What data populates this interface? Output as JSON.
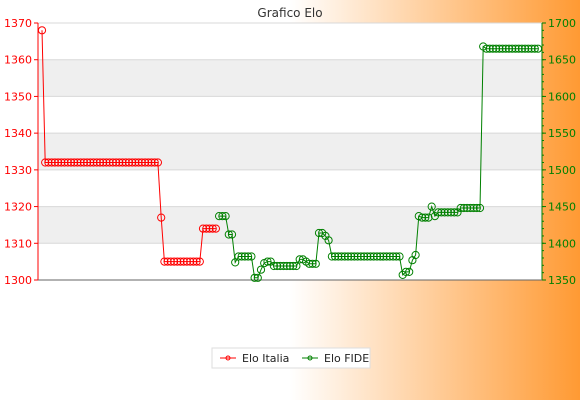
{
  "chart_data": {
    "type": "line",
    "title": "Grafico Elo",
    "y_left": {
      "min": 1300,
      "max": 1370,
      "ticks": [
        1300,
        1310,
        1320,
        1330,
        1340,
        1350,
        1360,
        1370
      ],
      "color": "#ff0000"
    },
    "y_right": {
      "min": 1350,
      "max": 1700,
      "ticks": [
        1350,
        1400,
        1450,
        1500,
        1550,
        1600,
        1650,
        1700
      ],
      "color": "#008000"
    },
    "x": {
      "count": 155
    },
    "grid": true,
    "legend_position": "bottom",
    "colors": {
      "background_start": "#ffffff",
      "background_end": "#ff9a33",
      "band": "#efefef",
      "elo_italia": "#ff0000",
      "elo_fide": "#008000"
    },
    "series": [
      {
        "name": "Elo Italia",
        "axis": "left",
        "segments": [
          {
            "from": 0,
            "to": 1,
            "value": 1368
          },
          {
            "from": 1,
            "to": 37,
            "value": 1332
          },
          {
            "from": 37,
            "to": 38,
            "value": 1317
          },
          {
            "from": 38,
            "to": 50,
            "value": 1305
          },
          {
            "from": 50,
            "to": 55,
            "value": 1314
          }
        ]
      },
      {
        "name": "Elo FIDE",
        "axis": "right",
        "segments": [
          {
            "from": 55,
            "to": 58,
            "value": 1437
          },
          {
            "from": 58,
            "to": 60,
            "value": 1412
          },
          {
            "from": 60,
            "to": 61,
            "value": 1374
          },
          {
            "from": 61,
            "to": 66,
            "value": 1382
          },
          {
            "from": 66,
            "to": 68,
            "value": 1353
          },
          {
            "from": 68,
            "to": 69,
            "value": 1364
          },
          {
            "from": 69,
            "to": 70,
            "value": 1373
          },
          {
            "from": 70,
            "to": 72,
            "value": 1375
          },
          {
            "from": 72,
            "to": 80,
            "value": 1369
          },
          {
            "from": 80,
            "to": 82,
            "value": 1378
          },
          {
            "from": 82,
            "to": 83,
            "value": 1375
          },
          {
            "from": 83,
            "to": 86,
            "value": 1372
          },
          {
            "from": 86,
            "to": 88,
            "value": 1414
          },
          {
            "from": 88,
            "to": 89,
            "value": 1410
          },
          {
            "from": 89,
            "to": 90,
            "value": 1404
          },
          {
            "from": 90,
            "to": 112,
            "value": 1382
          },
          {
            "from": 112,
            "to": 113,
            "value": 1357
          },
          {
            "from": 113,
            "to": 115,
            "value": 1361
          },
          {
            "from": 115,
            "to": 116,
            "value": 1377
          },
          {
            "from": 116,
            "to": 117,
            "value": 1384
          },
          {
            "from": 117,
            "to": 118,
            "value": 1437
          },
          {
            "from": 118,
            "to": 121,
            "value": 1435
          },
          {
            "from": 121,
            "to": 122,
            "value": 1450
          },
          {
            "from": 122,
            "to": 123,
            "value": 1437
          },
          {
            "from": 123,
            "to": 130,
            "value": 1442
          },
          {
            "from": 130,
            "to": 137,
            "value": 1448
          },
          {
            "from": 137,
            "to": 138,
            "value": 1668
          },
          {
            "from": 138,
            "to": 155,
            "value": 1665
          }
        ]
      }
    ]
  }
}
